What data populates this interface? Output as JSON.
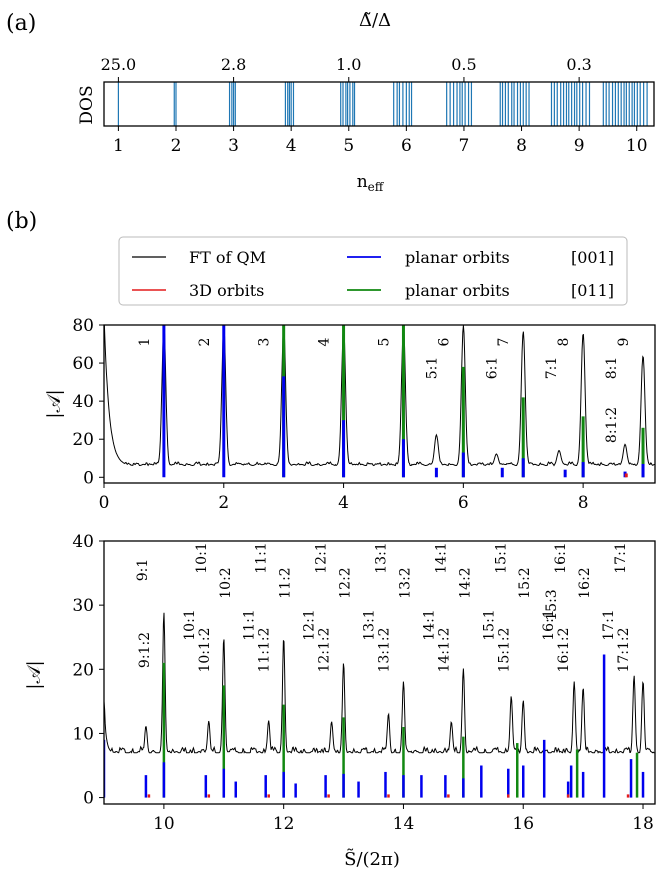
{
  "panel_a": {
    "label": "(a)",
    "top_axis_label": "Δ̃/Δ",
    "top_ticks": [
      "25.0",
      "2.8",
      "1.0",
      "0.5",
      "0.3"
    ],
    "ylabel": "DOS",
    "xlabel": "n",
    "xlabel_sub": "eff",
    "x_ticks": [
      "1",
      "2",
      "3",
      "4",
      "5",
      "6",
      "7",
      "8",
      "9",
      "10"
    ]
  },
  "panel_b": {
    "label": "(b)",
    "legend": {
      "ft": "FT of QM",
      "orb3d": "3D orbits",
      "planar001": "planar orbits",
      "planar001_dir": "[001]",
      "planar011": "planar orbits",
      "planar011_dir": "[011]"
    },
    "ylabel": "|𝒜|",
    "xlabel": "S̃/(2π)",
    "top_xticks": [
      "0",
      "2",
      "4",
      "6",
      "8"
    ],
    "top_yticks": [
      "0",
      "20",
      "40",
      "60",
      "80"
    ],
    "bottom_xticks": [
      "10",
      "12",
      "14",
      "16",
      "18"
    ],
    "bottom_yticks": [
      "0",
      "10",
      "20",
      "30",
      "40"
    ],
    "top_blue_labels": [
      "1",
      "2",
      "3",
      "4",
      "5",
      "6",
      "7",
      "8",
      "9",
      "5:1",
      "6:1",
      "7:1",
      "8:1"
    ],
    "top_red_labels": [
      "8:1:2"
    ],
    "bottom_blue_labels": [
      "9:1",
      "10:1",
      "10:2",
      "11:1",
      "11:2",
      "12:1",
      "12:2",
      "13:1",
      "13:2",
      "14:1",
      "14:2",
      "15:1",
      "15:2",
      "15:3",
      "16:1",
      "16:2",
      "17:1"
    ],
    "bottom_green_labels": [
      "10:1",
      "11:1",
      "12:1",
      "13:1",
      "14:1",
      "15:1",
      "16:1",
      "17:1"
    ],
    "bottom_red_labels": [
      "9:1:2",
      "10:1:2",
      "11:1:2",
      "12:1:2",
      "13:1:2",
      "14:1:2",
      "15:1:2",
      "16:1:2",
      "17:1:2"
    ]
  },
  "colors": {
    "ft": "#000000",
    "orb3d": "#e31a1c",
    "planar001": "#0000ee",
    "planar011": "#118811",
    "dos": "#1f77b4"
  },
  "chart_data": [
    {
      "type": "bar",
      "name": "DOS",
      "xlim": [
        0.75,
        10.3
      ],
      "x_values": [
        1.0,
        1.97,
        2.0,
        2.93,
        2.97,
        3.0,
        3.03,
        3.9,
        3.94,
        3.97,
        4.0,
        4.04,
        4.86,
        4.9,
        4.95,
        4.98,
        5.02,
        5.07,
        5.1,
        5.78,
        5.84,
        5.88,
        5.94,
        6.0,
        6.05,
        6.09,
        6.7,
        6.76,
        6.82,
        6.88,
        6.93,
        6.97,
        7.02,
        7.08,
        7.13,
        7.63,
        7.67,
        7.72,
        7.77,
        7.83,
        7.87,
        7.93,
        7.98,
        8.03,
        8.08,
        8.13,
        8.52,
        8.57,
        8.62,
        8.68,
        8.73,
        8.78,
        8.82,
        8.87,
        8.92,
        8.96,
        9.01,
        9.06,
        9.12,
        9.18,
        9.42,
        9.47,
        9.52,
        9.58,
        9.63,
        9.68,
        9.73,
        9.78,
        9.82,
        9.87,
        9.92,
        9.96,
        10.01,
        10.06,
        10.12,
        10.18
      ],
      "top_axis_ticks": [
        {
          "x": 1.0,
          "label": "25.0"
        },
        {
          "x": 3.0,
          "label": "2.8"
        },
        {
          "x": 5.0,
          "label": "1.0"
        },
        {
          "x": 7.0,
          "label": "0.5"
        },
        {
          "x": 9.0,
          "label": "0.3"
        }
      ]
    },
    {
      "type": "line",
      "name": "FT of QM",
      "xlim": [
        0,
        9.2
      ],
      "ylim": [
        -3,
        80
      ],
      "ft_peaks": [
        [
          1,
          80
        ],
        [
          2,
          80
        ],
        [
          3,
          80
        ],
        [
          4,
          80
        ],
        [
          5,
          80
        ],
        [
          5.55,
          22
        ],
        [
          6,
          80
        ],
        [
          6.55,
          12
        ],
        [
          7,
          77
        ],
        [
          7.6,
          14
        ],
        [
          8,
          76
        ],
        [
          8.7,
          17
        ],
        [
          9,
          64
        ]
      ],
      "blue_sticks": [
        [
          1,
          80
        ],
        [
          2,
          80
        ],
        [
          3,
          53
        ],
        [
          4,
          30
        ],
        [
          5,
          20
        ],
        [
          5.55,
          5
        ],
        [
          6,
          13
        ],
        [
          6.65,
          5
        ],
        [
          7,
          10
        ],
        [
          7.7,
          4
        ],
        [
          8,
          8
        ],
        [
          8.7,
          3
        ],
        [
          9,
          7
        ]
      ],
      "green_sticks": [
        [
          3,
          80
        ],
        [
          4,
          80
        ],
        [
          5,
          80
        ],
        [
          6,
          58
        ],
        [
          7,
          42
        ],
        [
          8,
          32
        ],
        [
          9,
          26
        ]
      ],
      "red_sticks": [
        [
          8.72,
          2
        ]
      ]
    },
    {
      "type": "line",
      "name": "FT of QM",
      "xlim": [
        9.0,
        18.2
      ],
      "ylim": [
        -1,
        40
      ],
      "ft_peaks": [
        [
          9,
          15
        ],
        [
          9.7,
          11
        ],
        [
          10,
          29
        ],
        [
          10.75,
          12
        ],
        [
          11,
          25
        ],
        [
          11.75,
          12
        ],
        [
          12,
          25
        ],
        [
          12.8,
          12
        ],
        [
          13,
          21
        ],
        [
          13.75,
          13
        ],
        [
          14,
          18
        ],
        [
          14.8,
          12
        ],
        [
          15,
          20
        ],
        [
          15.8,
          16
        ],
        [
          16,
          15
        ],
        [
          16.85,
          18
        ],
        [
          17,
          17
        ],
        [
          17.85,
          19
        ],
        [
          18,
          18
        ]
      ],
      "blue_sticks": [
        [
          9,
          9
        ],
        [
          9.7,
          3.5
        ],
        [
          10,
          5.5
        ],
        [
          10.7,
          3.5
        ],
        [
          11,
          4.5
        ],
        [
          11.2,
          2.5
        ],
        [
          11.7,
          3.5
        ],
        [
          12,
          4
        ],
        [
          12.2,
          2.2
        ],
        [
          12.7,
          3.5
        ],
        [
          13,
          3.7
        ],
        [
          13.25,
          2.5
        ],
        [
          13.7,
          4
        ],
        [
          14,
          3.5
        ],
        [
          14.3,
          3.5
        ],
        [
          14.7,
          3.5
        ],
        [
          15,
          3
        ],
        [
          15.3,
          5
        ],
        [
          15.75,
          4.5
        ],
        [
          16,
          5
        ],
        [
          16.35,
          9
        ],
        [
          16.75,
          2.5
        ],
        [
          16.8,
          5
        ],
        [
          17,
          4
        ],
        [
          17.35,
          22.3
        ],
        [
          17.8,
          6
        ],
        [
          18,
          4
        ]
      ],
      "green_sticks": [
        [
          10,
          21
        ],
        [
          11,
          17.5
        ],
        [
          12,
          14.5
        ],
        [
          13,
          12.5
        ],
        [
          14,
          11
        ],
        [
          15,
          9.5
        ],
        [
          15.9,
          8.5
        ],
        [
          16.9,
          7.5
        ],
        [
          17.9,
          7
        ]
      ],
      "red_sticks": [
        [
          9.75,
          0.5
        ],
        [
          10.75,
          0.5
        ],
        [
          11.75,
          0.5
        ],
        [
          12.75,
          0.5
        ],
        [
          13.75,
          0.5
        ],
        [
          14.75,
          0.5
        ],
        [
          15.75,
          0.5
        ],
        [
          16.75,
          0.5
        ],
        [
          17.75,
          0.5
        ]
      ]
    }
  ]
}
